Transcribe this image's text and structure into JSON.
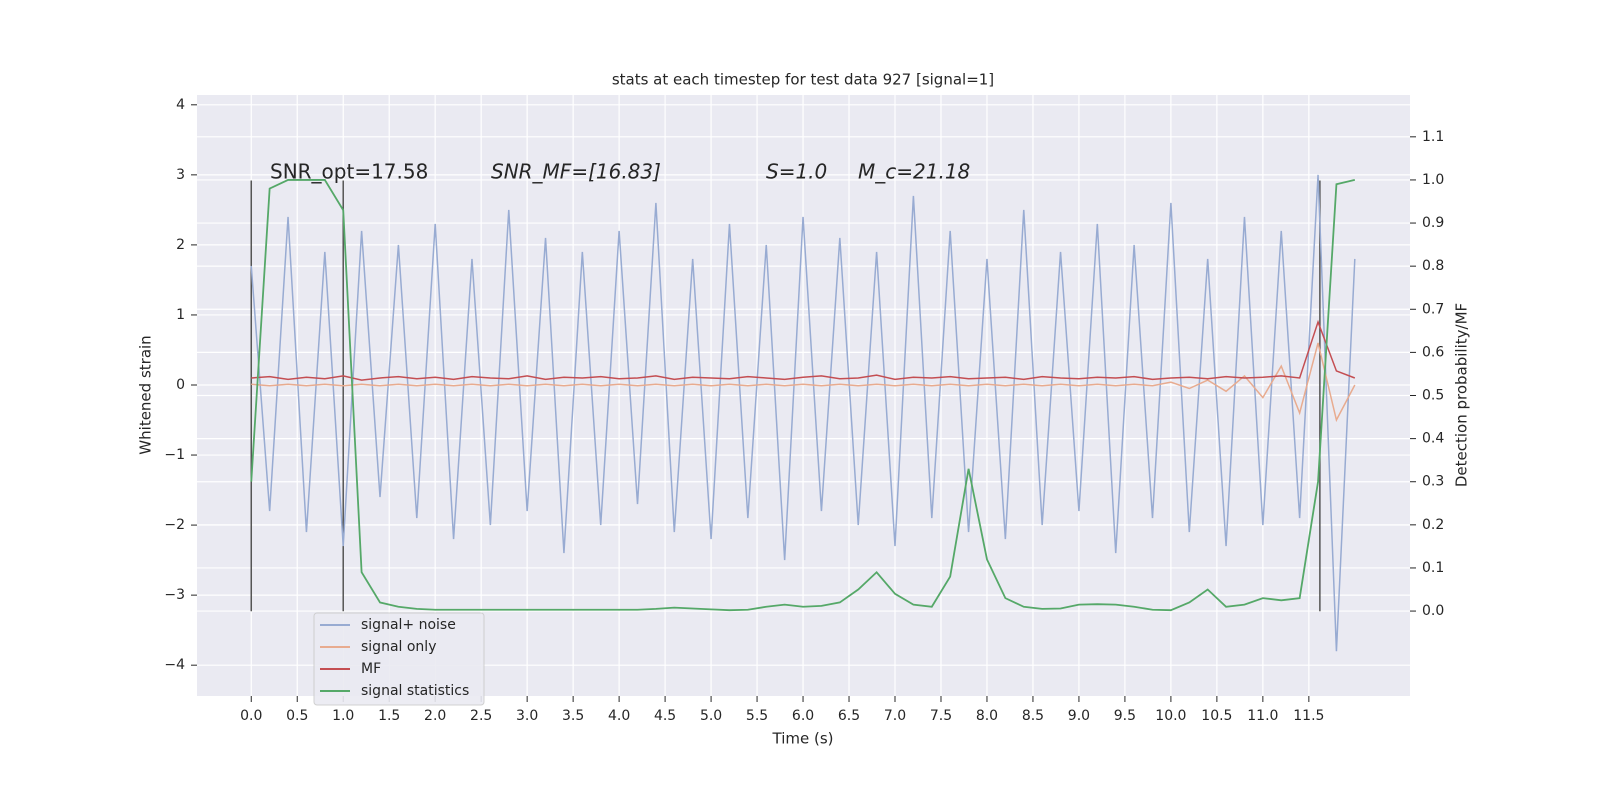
{
  "chart_data": {
    "type": "line",
    "title": "stats at each timestep for test data 927 [signal=1]",
    "xlabel": "Time (s)",
    "ylabel": "Whitened strain",
    "y2label": "Detection probability/MF",
    "annotations": [
      "SNR_opt=17.58",
      "SNR_MF=[16.83]",
      "S=1.0",
      "M_c=21.18"
    ],
    "xlim": [
      -0.59,
      12.6
    ],
    "ylim": [
      -4.44,
      4.14
    ],
    "y2lim": [
      -0.197,
      1.197
    ],
    "xticks": [
      {
        "value": 0,
        "label": "0.0"
      },
      0.5,
      {
        "value": 1,
        "label": "1.0"
      },
      1.5,
      {
        "value": 2,
        "label": "2.0"
      },
      2.5,
      {
        "value": 3,
        "label": "3.0"
      },
      3.5,
      {
        "value": 4,
        "label": "4.0"
      },
      4.5,
      {
        "value": 5,
        "label": "5.0"
      },
      5.5,
      {
        "value": 6,
        "label": "6.0"
      },
      6.5,
      {
        "value": 7,
        "label": "7.0"
      },
      7.5,
      {
        "value": 8,
        "label": "8.0"
      },
      8.5,
      {
        "value": 9,
        "label": "9.0"
      },
      9.5,
      {
        "value": 10,
        "label": "10.0"
      },
      10.5,
      {
        "value": 11,
        "label": "11.0"
      },
      11.5
    ],
    "yticks": [
      {
        "value": -4,
        "label": "−4"
      },
      {
        "value": -3,
        "label": "−3"
      },
      {
        "value": -2,
        "label": "−2"
      },
      {
        "value": -1,
        "label": "−1"
      },
      0,
      1,
      2,
      3,
      4
    ],
    "y2ticks": [
      {
        "value": 0,
        "label": "0.0"
      },
      0.1,
      0.2,
      0.3,
      0.4,
      0.5,
      0.6,
      0.7,
      0.8,
      0.9,
      {
        "value": 1,
        "label": "1.0"
      },
      1.1
    ],
    "grid": true,
    "legend": "lower left",
    "vlines": [
      0,
      1,
      11.62
    ],
    "vline_range": [
      -3.23,
      2.92
    ],
    "x": [
      0,
      0.2,
      0.4,
      0.6,
      0.8,
      1,
      1.2,
      1.4,
      1.6,
      1.8,
      2,
      2.2,
      2.4,
      2.6,
      2.8,
      3,
      3.2,
      3.4,
      3.6,
      3.8,
      4,
      4.2,
      4.4,
      4.6,
      4.8,
      5,
      5.2,
      5.4,
      5.6,
      5.8,
      6,
      6.2,
      6.4,
      6.6,
      6.8,
      7,
      7.2,
      7.4,
      7.6,
      7.8,
      8,
      8.2,
      8.4,
      8.6,
      8.8,
      9,
      9.2,
      9.4,
      9.6,
      9.8,
      10,
      10.2,
      10.4,
      10.6,
      10.8,
      11,
      11.2,
      11.4,
      11.6,
      11.8,
      12
    ],
    "series": [
      {
        "name": "signal+ noise",
        "color": "#98abd2",
        "values": [
          1.7,
          -1.8,
          2.4,
          -2.1,
          1.9,
          -2.3,
          2.2,
          -1.6,
          2.0,
          -1.9,
          2.3,
          -2.2,
          1.8,
          -2.0,
          2.5,
          -1.8,
          2.1,
          -2.4,
          1.9,
          -2.0,
          2.2,
          -1.7,
          2.6,
          -2.1,
          1.8,
          -2.2,
          2.3,
          -1.9,
          2.0,
          -2.5,
          2.4,
          -1.8,
          2.1,
          -2.0,
          1.9,
          -2.3,
          2.7,
          -1.9,
          2.2,
          -2.1,
          1.8,
          -2.2,
          2.5,
          -2.0,
          1.9,
          -1.8,
          2.3,
          -2.4,
          2.0,
          -1.9,
          2.6,
          -2.1,
          1.8,
          -2.3,
          2.4,
          -2.0,
          2.2,
          -1.9,
          3.0,
          -3.8,
          1.8
        ]
      },
      {
        "name": "signal only",
        "color": "#e8ab8f",
        "values": [
          0.01,
          -0.01,
          0.01,
          -0.01,
          0.01,
          -0.01,
          0.01,
          -0.01,
          0.01,
          -0.01,
          0.01,
          -0.01,
          0.01,
          -0.01,
          0.01,
          -0.01,
          0.01,
          -0.01,
          0.01,
          -0.01,
          0.01,
          -0.01,
          0.01,
          -0.01,
          0.01,
          -0.01,
          0.01,
          -0.01,
          0.01,
          -0.01,
          0.01,
          -0.01,
          0.01,
          -0.01,
          0.01,
          -0.01,
          0.01,
          -0.01,
          0.01,
          -0.01,
          0.01,
          -0.01,
          0.01,
          -0.01,
          0.01,
          -0.01,
          0.01,
          -0.01,
          0.01,
          -0.01,
          0.04,
          -0.05,
          0.07,
          -0.09,
          0.13,
          -0.18,
          0.27,
          -0.4,
          0.6,
          -0.5,
          0.0
        ]
      },
      {
        "name": "MF",
        "color": "#c44e52",
        "values": [
          0.1,
          0.12,
          0.08,
          0.11,
          0.09,
          0.13,
          0.07,
          0.1,
          0.12,
          0.09,
          0.11,
          0.08,
          0.12,
          0.1,
          0.09,
          0.13,
          0.08,
          0.11,
          0.1,
          0.12,
          0.09,
          0.1,
          0.13,
          0.08,
          0.11,
          0.1,
          0.09,
          0.12,
          0.1,
          0.08,
          0.11,
          0.13,
          0.09,
          0.1,
          0.14,
          0.08,
          0.11,
          0.1,
          0.12,
          0.09,
          0.1,
          0.11,
          0.08,
          0.12,
          0.1,
          0.09,
          0.11,
          0.1,
          0.12,
          0.08,
          0.1,
          0.11,
          0.09,
          0.12,
          0.1,
          0.11,
          0.13,
          0.1,
          0.9,
          0.2,
          0.1
        ]
      },
      {
        "name": "signal statistics",
        "color": "#55a868",
        "axis": "y2",
        "values": [
          0.3,
          0.98,
          1.0,
          1.0,
          1.0,
          0.93,
          0.09,
          0.02,
          0.01,
          0.005,
          0.003,
          0.003,
          0.003,
          0.003,
          0.003,
          0.003,
          0.003,
          0.003,
          0.003,
          0.003,
          0.003,
          0.003,
          0.005,
          0.008,
          0.006,
          0.004,
          0.002,
          0.003,
          0.01,
          0.015,
          0.01,
          0.012,
          0.02,
          0.05,
          0.09,
          0.04,
          0.015,
          0.01,
          0.08,
          0.33,
          0.12,
          0.03,
          0.01,
          0.005,
          0.006,
          0.015,
          0.016,
          0.015,
          0.01,
          0.003,
          0.002,
          0.02,
          0.05,
          0.01,
          0.015,
          0.03,
          0.025,
          0.03,
          0.3,
          0.99,
          1.0
        ]
      }
    ]
  }
}
